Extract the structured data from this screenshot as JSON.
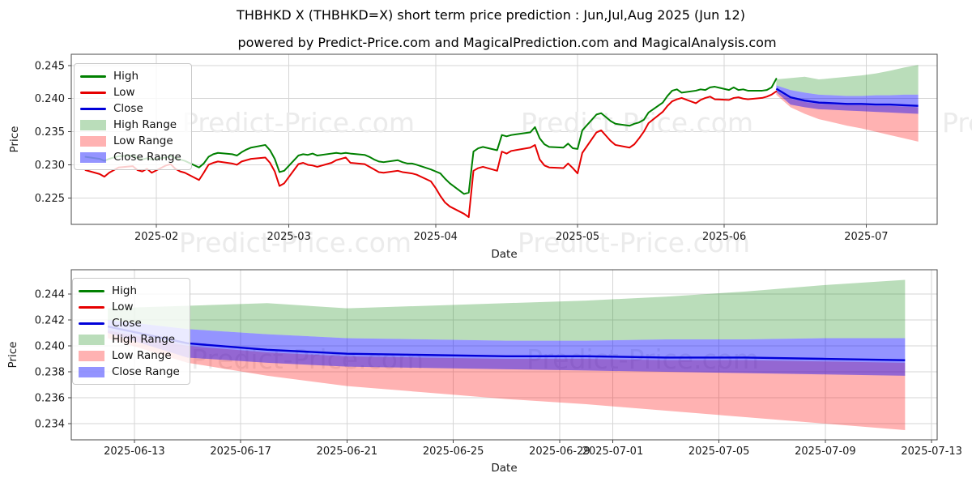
{
  "header": {
    "title": "THBHKD X (THBHKD=X) short term price prediction : Jun,Jul,Aug 2025 (Jun 12)",
    "subtitle": "powered by Predict-Price.com and MagicalPrediction.com and MagicalAnalysis.com"
  },
  "watermark": {
    "text": "Predict-Price.com",
    "color": "#ebebeb",
    "font_size": 33
  },
  "colors": {
    "high_line": "#008000",
    "low_line": "#e60000",
    "close_line": "#0000d9",
    "high_band": "rgba(0,128,0,0.27)",
    "low_band": "rgba(255,0,0,0.30)",
    "close_band": "rgba(0,0,255,0.42)",
    "grid": "#d6d6d6",
    "spine": "#4a4a4a",
    "tick_text": "#1a1a1a",
    "background": "#ffffff"
  },
  "legend": {
    "position": "upper left",
    "items": [
      {
        "label": "High",
        "swatch": "line",
        "color_key": "high_line"
      },
      {
        "label": "Low",
        "swatch": "line",
        "color_key": "low_line"
      },
      {
        "label": "Close",
        "swatch": "line",
        "color_key": "close_line"
      },
      {
        "label": "High Range",
        "swatch": "patch",
        "color_key": "high_band"
      },
      {
        "label": "Low Range",
        "swatch": "patch",
        "color_key": "low_band"
      },
      {
        "label": "Close Range",
        "swatch": "patch",
        "color_key": "close_band"
      }
    ]
  },
  "chart_data": [
    {
      "id": "top",
      "type": "line",
      "xlabel": "Date",
      "ylabel": "Price",
      "x_domain": [
        "2025-01-14",
        "2025-07-16"
      ],
      "y_domain": [
        0.221,
        0.2467
      ],
      "grid": true,
      "x_ticks": [
        {
          "v": "2025-02-01",
          "label": "2025-02"
        },
        {
          "v": "2025-03-01",
          "label": "2025-03"
        },
        {
          "v": "2025-04-01",
          "label": "2025-04"
        },
        {
          "v": "2025-05-01",
          "label": "2025-05"
        },
        {
          "v": "2025-06-01",
          "label": "2025-06"
        },
        {
          "v": "2025-07-01",
          "label": "2025-07"
        }
      ],
      "y_ticks": [
        {
          "v": 0.225,
          "label": "0.225"
        },
        {
          "v": 0.23,
          "label": "0.230"
        },
        {
          "v": 0.235,
          "label": "0.235"
        },
        {
          "v": 0.24,
          "label": "0.240"
        },
        {
          "v": 0.245,
          "label": "0.245"
        }
      ],
      "history": {
        "columns": [
          "date",
          "high",
          "low"
        ],
        "rows": [
          [
            "2025-01-17",
            0.2312,
            0.2292
          ],
          [
            "2025-01-20",
            0.2309,
            0.2286
          ],
          [
            "2025-01-21",
            0.2306,
            0.2282
          ],
          [
            "2025-01-22",
            0.2309,
            0.2288
          ],
          [
            "2025-01-23",
            0.2311,
            0.2292
          ],
          [
            "2025-01-24",
            0.2313,
            0.2296
          ],
          [
            "2025-01-27",
            0.2314,
            0.2298
          ],
          [
            "2025-01-28",
            0.231,
            0.2292
          ],
          [
            "2025-01-29",
            0.2308,
            0.229
          ],
          [
            "2025-01-30",
            0.231,
            0.2294
          ],
          [
            "2025-01-31",
            0.2308,
            0.2288
          ],
          [
            "2025-02-03",
            0.2311,
            0.2299
          ],
          [
            "2025-02-04",
            0.2313,
            0.2301
          ],
          [
            "2025-02-05",
            0.231,
            0.2294
          ],
          [
            "2025-02-06",
            0.2308,
            0.229
          ],
          [
            "2025-02-07",
            0.2306,
            0.2288
          ],
          [
            "2025-02-10",
            0.2296,
            0.2277
          ],
          [
            "2025-02-11",
            0.2302,
            0.2288
          ],
          [
            "2025-02-12",
            0.2312,
            0.23
          ],
          [
            "2025-02-13",
            0.2316,
            0.2303
          ],
          [
            "2025-02-14",
            0.2318,
            0.2305
          ],
          [
            "2025-02-17",
            0.2316,
            0.2302
          ],
          [
            "2025-02-18",
            0.2314,
            0.23
          ],
          [
            "2025-02-19",
            0.2319,
            0.2305
          ],
          [
            "2025-02-20",
            0.2323,
            0.2307
          ],
          [
            "2025-02-21",
            0.2326,
            0.2309
          ],
          [
            "2025-02-24",
            0.233,
            0.2311
          ],
          [
            "2025-02-25",
            0.2322,
            0.2303
          ],
          [
            "2025-02-26",
            0.2309,
            0.229
          ],
          [
            "2025-02-27",
            0.2289,
            0.2268
          ],
          [
            "2025-02-28",
            0.2291,
            0.2272
          ],
          [
            "2025-03-03",
            0.2314,
            0.2301
          ],
          [
            "2025-03-04",
            0.2316,
            0.2303
          ],
          [
            "2025-03-05",
            0.2315,
            0.23
          ],
          [
            "2025-03-06",
            0.2317,
            0.2299
          ],
          [
            "2025-03-07",
            0.2314,
            0.2297
          ],
          [
            "2025-03-10",
            0.2317,
            0.2303
          ],
          [
            "2025-03-11",
            0.2318,
            0.2307
          ],
          [
            "2025-03-12",
            0.2317,
            0.2309
          ],
          [
            "2025-03-13",
            0.2318,
            0.2311
          ],
          [
            "2025-03-14",
            0.2317,
            0.2303
          ],
          [
            "2025-03-17",
            0.2315,
            0.2301
          ],
          [
            "2025-03-18",
            0.2312,
            0.2297
          ],
          [
            "2025-03-19",
            0.2308,
            0.2293
          ],
          [
            "2025-03-20",
            0.2305,
            0.2289
          ],
          [
            "2025-03-21",
            0.2304,
            0.2288
          ],
          [
            "2025-03-24",
            0.2307,
            0.2291
          ],
          [
            "2025-03-25",
            0.2304,
            0.2289
          ],
          [
            "2025-03-26",
            0.2302,
            0.2288
          ],
          [
            "2025-03-27",
            0.2302,
            0.2287
          ],
          [
            "2025-03-28",
            0.23,
            0.2285
          ],
          [
            "2025-03-31",
            0.2293,
            0.2275
          ],
          [
            "2025-04-01",
            0.229,
            0.2265
          ],
          [
            "2025-04-02",
            0.2287,
            0.2253
          ],
          [
            "2025-04-03",
            0.2279,
            0.2243
          ],
          [
            "2025-04-04",
            0.2272,
            0.2237
          ],
          [
            "2025-04-07",
            0.2256,
            0.2226
          ],
          [
            "2025-04-08",
            0.2258,
            0.2221
          ],
          [
            "2025-04-09",
            0.232,
            0.2291
          ],
          [
            "2025-04-10",
            0.2325,
            0.2295
          ],
          [
            "2025-04-11",
            0.2327,
            0.2297
          ],
          [
            "2025-04-14",
            0.2322,
            0.2291
          ],
          [
            "2025-04-15",
            0.2345,
            0.232
          ],
          [
            "2025-04-16",
            0.2343,
            0.2317
          ],
          [
            "2025-04-17",
            0.2345,
            0.2321
          ],
          [
            "2025-04-21",
            0.2349,
            0.2326
          ],
          [
            "2025-04-22",
            0.2357,
            0.233
          ],
          [
            "2025-04-23",
            0.234,
            0.2308
          ],
          [
            "2025-04-24",
            0.2331,
            0.2299
          ],
          [
            "2025-04-25",
            0.2327,
            0.2296
          ],
          [
            "2025-04-28",
            0.2326,
            0.2295
          ],
          [
            "2025-04-29",
            0.2332,
            0.2302
          ],
          [
            "2025-04-30",
            0.2325,
            0.2295
          ],
          [
            "2025-05-01",
            0.2324,
            0.2287
          ],
          [
            "2025-05-02",
            0.2352,
            0.2318
          ],
          [
            "2025-05-05",
            0.2376,
            0.2349
          ],
          [
            "2025-05-06",
            0.2378,
            0.2352
          ],
          [
            "2025-05-07",
            0.2372,
            0.2344
          ],
          [
            "2025-05-08",
            0.2366,
            0.2336
          ],
          [
            "2025-05-09",
            0.2362,
            0.233
          ],
          [
            "2025-05-12",
            0.2359,
            0.2326
          ],
          [
            "2025-05-13",
            0.2362,
            0.2331
          ],
          [
            "2025-05-14",
            0.2364,
            0.234
          ],
          [
            "2025-05-15",
            0.2368,
            0.235
          ],
          [
            "2025-05-16",
            0.2379,
            0.2363
          ],
          [
            "2025-05-19",
            0.2394,
            0.238
          ],
          [
            "2025-05-20",
            0.2404,
            0.2389
          ],
          [
            "2025-05-21",
            0.2412,
            0.2396
          ],
          [
            "2025-05-22",
            0.2414,
            0.2399
          ],
          [
            "2025-05-23",
            0.2409,
            0.2401
          ],
          [
            "2025-05-26",
            0.2412,
            0.2393
          ],
          [
            "2025-05-27",
            0.2414,
            0.2398
          ],
          [
            "2025-05-28",
            0.2413,
            0.2401
          ],
          [
            "2025-05-29",
            0.2417,
            0.2403
          ],
          [
            "2025-05-30",
            0.2418,
            0.2399
          ],
          [
            "2025-06-02",
            0.2413,
            0.2398
          ],
          [
            "2025-06-03",
            0.2417,
            0.2401
          ],
          [
            "2025-06-04",
            0.2413,
            0.2402
          ],
          [
            "2025-06-05",
            0.2414,
            0.24
          ],
          [
            "2025-06-06",
            0.2412,
            0.2399
          ],
          [
            "2025-06-09",
            0.2412,
            0.2401
          ],
          [
            "2025-06-10",
            0.2413,
            0.2403
          ],
          [
            "2025-06-11",
            0.2417,
            0.2406
          ],
          [
            "2025-06-12",
            0.243,
            0.2411
          ]
        ]
      },
      "prediction": {
        "dates": [
          "2025-06-12",
          "2025-06-15",
          "2025-06-18",
          "2025-06-21",
          "2025-06-24",
          "2025-06-27",
          "2025-06-30",
          "2025-07-03",
          "2025-07-06",
          "2025-07-09",
          "2025-07-12"
        ],
        "close": [
          0.2415,
          0.2402,
          0.2397,
          0.2394,
          0.2393,
          0.2392,
          0.2392,
          0.2391,
          0.2391,
          0.239,
          0.2389
        ],
        "close_upper": [
          0.242,
          0.2413,
          0.2409,
          0.2406,
          0.2405,
          0.2404,
          0.2404,
          0.2405,
          0.2405,
          0.2406,
          0.2406
        ],
        "close_lower": [
          0.241,
          0.2391,
          0.2387,
          0.2384,
          0.2383,
          0.2382,
          0.2381,
          0.238,
          0.2379,
          0.2378,
          0.2377
        ],
        "high_upper": [
          0.2429,
          0.2431,
          0.2433,
          0.2429,
          0.2431,
          0.2433,
          0.2435,
          0.2438,
          0.2442,
          0.2447,
          0.2451
        ],
        "high_lower": [
          0.242,
          0.2413,
          0.2409,
          0.2406,
          0.2405,
          0.2404,
          0.2404,
          0.2405,
          0.2405,
          0.2406,
          0.2406
        ],
        "low_upper": [
          0.2412,
          0.24,
          0.2395,
          0.2392,
          0.2391,
          0.239,
          0.239,
          0.2389,
          0.2389,
          0.2388,
          0.2387
        ],
        "low_lower": [
          0.2406,
          0.2387,
          0.2377,
          0.2369,
          0.2364,
          0.2359,
          0.2355,
          0.235,
          0.2345,
          0.234,
          0.2335
        ]
      }
    },
    {
      "id": "bottom",
      "type": "line",
      "xlabel": "Date",
      "ylabel": "Price",
      "x_domain": [
        "2025-06-10T15:00:00",
        "2025-07-13T05:00:00"
      ],
      "y_domain": [
        0.23275,
        0.24588
      ],
      "grid": true,
      "x_ticks": [
        {
          "v": "2025-06-13",
          "label": "2025-06-13"
        },
        {
          "v": "2025-06-17",
          "label": "2025-06-17"
        },
        {
          "v": "2025-06-21",
          "label": "2025-06-21"
        },
        {
          "v": "2025-06-25",
          "label": "2025-06-25"
        },
        {
          "v": "2025-06-29",
          "label": "2025-06-29"
        },
        {
          "v": "2025-07-01",
          "label": "2025-07-01"
        },
        {
          "v": "2025-07-05",
          "label": "2025-07-05"
        },
        {
          "v": "2025-07-09",
          "label": "2025-07-09"
        },
        {
          "v": "2025-07-13",
          "label": "2025-07-13"
        }
      ],
      "y_ticks": [
        {
          "v": 0.234,
          "label": "0.234"
        },
        {
          "v": 0.236,
          "label": "0.236"
        },
        {
          "v": 0.238,
          "label": "0.238"
        },
        {
          "v": 0.24,
          "label": "0.240"
        },
        {
          "v": 0.242,
          "label": "0.242"
        },
        {
          "v": 0.244,
          "label": "0.244"
        }
      ],
      "prediction": {
        "dates": [
          "2025-06-12",
          "2025-06-15",
          "2025-06-18",
          "2025-06-21",
          "2025-06-24",
          "2025-06-27",
          "2025-06-30",
          "2025-07-03",
          "2025-07-06",
          "2025-07-09",
          "2025-07-12"
        ],
        "close": [
          0.2415,
          0.2402,
          0.2397,
          0.2394,
          0.2393,
          0.2392,
          0.2392,
          0.2391,
          0.2391,
          0.239,
          0.2389
        ],
        "close_upper": [
          0.242,
          0.2413,
          0.2409,
          0.2406,
          0.2405,
          0.2404,
          0.2404,
          0.2405,
          0.2405,
          0.2406,
          0.2406
        ],
        "close_lower": [
          0.241,
          0.2391,
          0.2387,
          0.2384,
          0.2383,
          0.2382,
          0.2381,
          0.238,
          0.2379,
          0.2378,
          0.2377
        ],
        "high_upper": [
          0.2429,
          0.2431,
          0.2433,
          0.2429,
          0.2431,
          0.2433,
          0.2435,
          0.2438,
          0.2442,
          0.2447,
          0.2451
        ],
        "high_lower": [
          0.242,
          0.2413,
          0.2409,
          0.2406,
          0.2405,
          0.2404,
          0.2404,
          0.2405,
          0.2405,
          0.2406,
          0.2406
        ],
        "low_upper": [
          0.2412,
          0.24,
          0.2395,
          0.2392,
          0.2391,
          0.239,
          0.239,
          0.2389,
          0.2389,
          0.2388,
          0.2387
        ],
        "low_lower": [
          0.2406,
          0.2387,
          0.2377,
          0.2369,
          0.2364,
          0.2359,
          0.2355,
          0.235,
          0.2345,
          0.234,
          0.2335
        ]
      }
    }
  ]
}
